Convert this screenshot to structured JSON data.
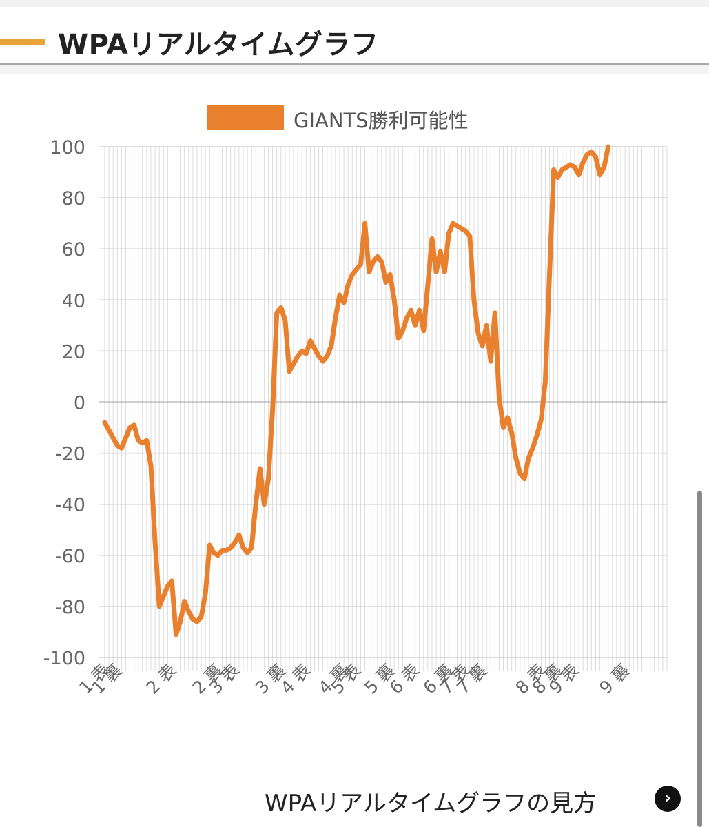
{
  "header": {
    "title": "WPAリアルタイムグラフ"
  },
  "colors": {
    "accent": "#e8a33a",
    "series": "#e8802d"
  },
  "chart_data": {
    "type": "line",
    "legend_position": "top-center",
    "grid": true,
    "ylim": [
      -100,
      100
    ],
    "yticks": [
      100,
      80,
      60,
      40,
      20,
      0,
      -20,
      -40,
      -60,
      -80,
      -100
    ],
    "xlim": [
      0,
      134
    ],
    "inning_labels": [
      {
        "text": "1 表",
        "x": 0
      },
      {
        "text": "1 裏",
        "x": 3
      },
      {
        "text": "2 表",
        "x": 16
      },
      {
        "text": "2 裏",
        "x": 27
      },
      {
        "text": "3 表",
        "x": 31
      },
      {
        "text": "3 裏",
        "x": 42
      },
      {
        "text": "4 表",
        "x": 48
      },
      {
        "text": "4 裏",
        "x": 57
      },
      {
        "text": "5 表",
        "x": 60
      },
      {
        "text": "5 裏",
        "x": 68
      },
      {
        "text": "6 表",
        "x": 74
      },
      {
        "text": "6 裏",
        "x": 82
      },
      {
        "text": "7 表",
        "x": 86
      },
      {
        "text": "7 裏",
        "x": 90
      },
      {
        "text": "8 表",
        "x": 104
      },
      {
        "text": "8 裏",
        "x": 108
      },
      {
        "text": "9 表",
        "x": 112
      },
      {
        "text": "9 裏",
        "x": 124
      }
    ],
    "series": [
      {
        "name": "GIANTS勝利可能性",
        "points": [
          [
            0,
            -8
          ],
          [
            1,
            -11
          ],
          [
            2,
            -14
          ],
          [
            3,
            -17
          ],
          [
            4,
            -18
          ],
          [
            5,
            -14
          ],
          [
            6,
            -10
          ],
          [
            7,
            -9
          ],
          [
            8,
            -15
          ],
          [
            9,
            -16
          ],
          [
            10,
            -15
          ],
          [
            11,
            -25
          ],
          [
            12,
            -55
          ],
          [
            13,
            -80
          ],
          [
            14,
            -76
          ],
          [
            15,
            -72
          ],
          [
            16,
            -70
          ],
          [
            17,
            -91
          ],
          [
            18,
            -86
          ],
          [
            19,
            -78
          ],
          [
            20,
            -82
          ],
          [
            21,
            -85
          ],
          [
            22,
            -86
          ],
          [
            23,
            -84
          ],
          [
            24,
            -75
          ],
          [
            25,
            -56
          ],
          [
            26,
            -59
          ],
          [
            27,
            -60
          ],
          [
            28,
            -58
          ],
          [
            29,
            -58
          ],
          [
            30,
            -57
          ],
          [
            31,
            -55
          ],
          [
            32,
            -52
          ],
          [
            33,
            -57
          ],
          [
            34,
            -59
          ],
          [
            35,
            -57
          ],
          [
            36,
            -40
          ],
          [
            37,
            -26
          ],
          [
            38,
            -40
          ],
          [
            39,
            -30
          ],
          [
            40,
            -3
          ],
          [
            41,
            35
          ],
          [
            42,
            37
          ],
          [
            43,
            32
          ],
          [
            44,
            12
          ],
          [
            45,
            15
          ],
          [
            46,
            18
          ],
          [
            47,
            20
          ],
          [
            48,
            19
          ],
          [
            49,
            24
          ],
          [
            50,
            21
          ],
          [
            51,
            18
          ],
          [
            52,
            16
          ],
          [
            53,
            18
          ],
          [
            54,
            22
          ],
          [
            55,
            33
          ],
          [
            56,
            42
          ],
          [
            57,
            39
          ],
          [
            58,
            46
          ],
          [
            59,
            50
          ],
          [
            60,
            52
          ],
          [
            61,
            54
          ],
          [
            62,
            70
          ],
          [
            63,
            51
          ],
          [
            64,
            55
          ],
          [
            65,
            57
          ],
          [
            66,
            55
          ],
          [
            67,
            47
          ],
          [
            68,
            50
          ],
          [
            69,
            40
          ],
          [
            70,
            25
          ],
          [
            71,
            28
          ],
          [
            72,
            33
          ],
          [
            73,
            36
          ],
          [
            74,
            30
          ],
          [
            75,
            36
          ],
          [
            76,
            28
          ],
          [
            77,
            46
          ],
          [
            78,
            64
          ],
          [
            79,
            51
          ],
          [
            80,
            59
          ],
          [
            81,
            51
          ],
          [
            82,
            66
          ],
          [
            83,
            70
          ],
          [
            84,
            69
          ],
          [
            85,
            68
          ],
          [
            86,
            67
          ],
          [
            87,
            65
          ],
          [
            88,
            40
          ],
          [
            89,
            27
          ],
          [
            90,
            22
          ],
          [
            91,
            30
          ],
          [
            92,
            16
          ],
          [
            93,
            35
          ],
          [
            94,
            2
          ],
          [
            95,
            -10
          ],
          [
            96,
            -6
          ],
          [
            97,
            -12
          ],
          [
            98,
            -22
          ],
          [
            99,
            -28
          ],
          [
            100,
            -30
          ],
          [
            101,
            -22
          ],
          [
            102,
            -18
          ],
          [
            103,
            -13
          ],
          [
            104,
            -7
          ],
          [
            105,
            8
          ],
          [
            106,
            50
          ],
          [
            107,
            91
          ],
          [
            108,
            88
          ],
          [
            109,
            91
          ],
          [
            110,
            92
          ],
          [
            111,
            93
          ],
          [
            112,
            92
          ],
          [
            113,
            89
          ],
          [
            114,
            94
          ],
          [
            115,
            97
          ],
          [
            116,
            98
          ],
          [
            117,
            96
          ],
          [
            118,
            89
          ],
          [
            119,
            92
          ],
          [
            120,
            100
          ]
        ]
      }
    ]
  },
  "footer": {
    "link_label": "WPAリアルタイムグラフの見方",
    "button_icon": "chevron-right-icon",
    "button_glyph": "›"
  }
}
